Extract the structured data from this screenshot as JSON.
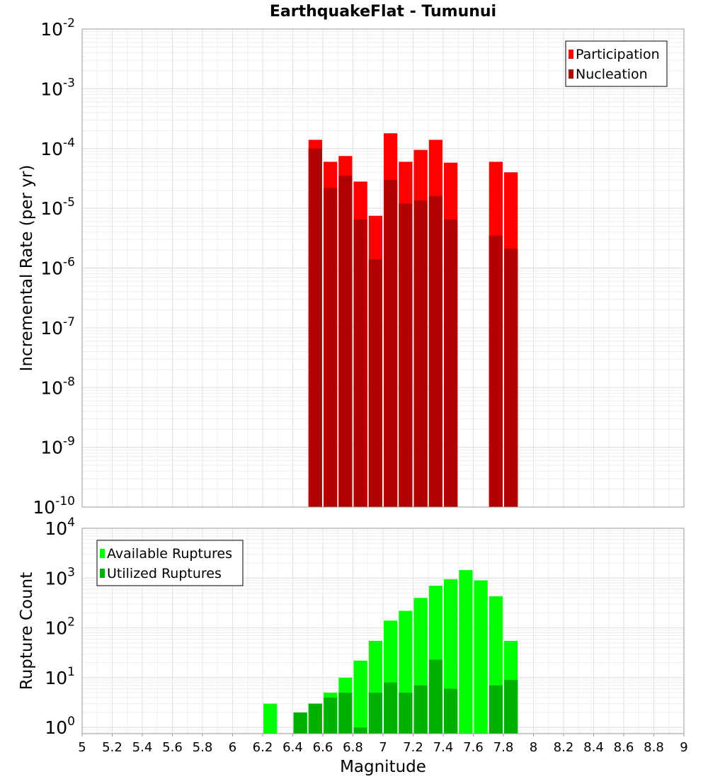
{
  "chart_data": [
    {
      "type": "bar",
      "title": "EarthquakeFlat - Tumunui",
      "ylabel": "Incremental Rate (per yr)",
      "xlabel": "",
      "y_scale": "log",
      "ylim": [
        1e-10,
        0.01
      ],
      "y_tick_bases": [
        "10",
        "10",
        "10",
        "10",
        "10",
        "10",
        "10",
        "10",
        "10"
      ],
      "y_tick_exponents": [
        "-10",
        "-9",
        "-8",
        "-7",
        "-6",
        "-5",
        "-4",
        "-3",
        "-2"
      ],
      "xlim": [
        5,
        9
      ],
      "bar_width": 0.1,
      "grid": true,
      "legend_position": "top-right",
      "series": [
        {
          "name": "Participation",
          "color": "#ff0000",
          "x": [
            6.55,
            6.65,
            6.75,
            6.85,
            6.95,
            7.05,
            7.15,
            7.25,
            7.35,
            7.45,
            7.75,
            7.85
          ],
          "values": [
            0.00014,
            6e-05,
            7.5e-05,
            2.8e-05,
            7.5e-06,
            0.00018,
            6e-05,
            9.5e-05,
            0.00014,
            5.8e-05,
            6e-05,
            4e-05
          ]
        },
        {
          "name": "Nucleation",
          "color": "#b00000",
          "x": [
            6.55,
            6.65,
            6.75,
            6.85,
            6.95,
            7.05,
            7.15,
            7.25,
            7.35,
            7.45,
            7.75,
            7.85
          ],
          "values": [
            0.0001,
            2.2e-05,
            3.5e-05,
            6.5e-06,
            1.4e-06,
            3e-05,
            1.2e-05,
            1.35e-05,
            1.6e-05,
            6.5e-06,
            3.5e-06,
            2.1e-06
          ]
        }
      ]
    },
    {
      "type": "bar",
      "title": "",
      "ylabel": "Rupture Count",
      "xlabel": "Magnitude",
      "y_scale": "log",
      "ylim": [
        0.75,
        10000
      ],
      "y_tick_bases": [
        "10",
        "10",
        "10",
        "10",
        "10"
      ],
      "y_tick_exponents": [
        "0",
        "1",
        "2",
        "3",
        "4"
      ],
      "xlim": [
        5,
        9
      ],
      "x_tick_labels": [
        "5",
        "5.2",
        "5.4",
        "5.6",
        "5.8",
        "6",
        "6.2",
        "6.4",
        "6.6",
        "6.8",
        "7",
        "7.2",
        "7.4",
        "7.6",
        "7.8",
        "8",
        "8.2",
        "8.4",
        "8.6",
        "8.8",
        "9"
      ],
      "bar_width": 0.1,
      "grid": true,
      "legend_position": "top-left",
      "series": [
        {
          "name": "Available Ruptures",
          "color": "#00ff00",
          "x": [
            6.25,
            6.45,
            6.55,
            6.65,
            6.75,
            6.85,
            6.95,
            7.05,
            7.15,
            7.25,
            7.35,
            7.45,
            7.55,
            7.65,
            7.75,
            7.85
          ],
          "values": [
            3,
            2,
            3,
            5,
            10,
            22,
            55,
            140,
            220,
            400,
            700,
            950,
            1450,
            900,
            430,
            55
          ]
        },
        {
          "name": "Utilized Ruptures",
          "color": "#00b000",
          "x": [
            6.45,
            6.55,
            6.65,
            6.75,
            6.85,
            6.95,
            7.05,
            7.15,
            7.25,
            7.35,
            7.45,
            7.75,
            7.85
          ],
          "values": [
            2,
            3,
            4,
            5,
            1,
            5,
            8,
            5,
            7,
            23,
            6,
            7,
            9
          ]
        }
      ]
    }
  ]
}
